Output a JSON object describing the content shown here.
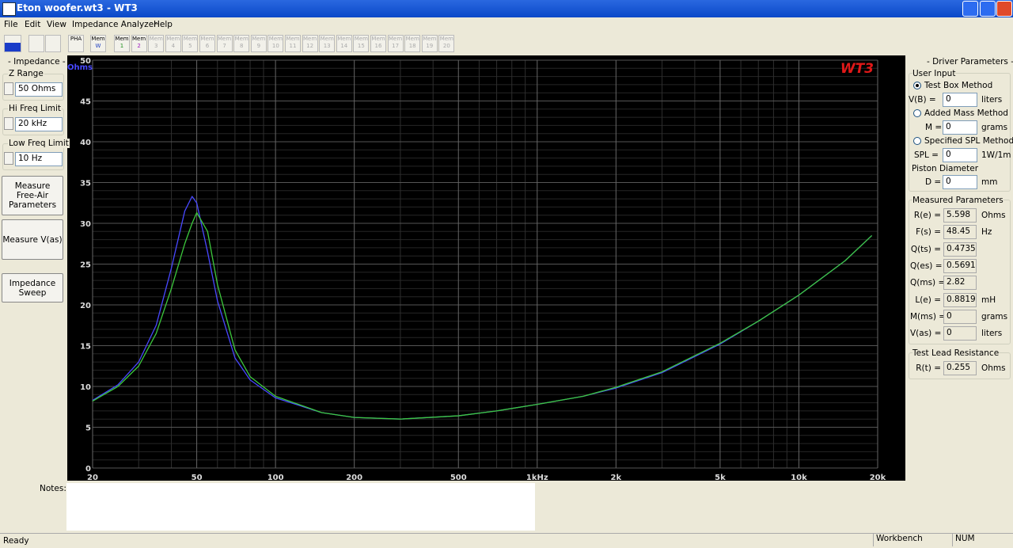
{
  "window": {
    "title": "Eton woofer.wt3 - WT3"
  },
  "menu": [
    "File",
    "Edit",
    "View",
    "Impedance Analyzer",
    "Help"
  ],
  "toolbar": {
    "pha": "PHA",
    "mem": [
      {
        "top": "Mem",
        "bottom": "W"
      },
      {
        "top": "Mem",
        "bottom": "1"
      },
      {
        "top": "Mem",
        "bottom": "2"
      },
      {
        "top": "Mem",
        "bottom": "3"
      },
      {
        "top": "Mem",
        "bottom": "4"
      },
      {
        "top": "Mem",
        "bottom": "5"
      },
      {
        "top": "Mem",
        "bottom": "6"
      },
      {
        "top": "Mem",
        "bottom": "7"
      },
      {
        "top": "Mem",
        "bottom": "8"
      },
      {
        "top": "Mem",
        "bottom": "9"
      },
      {
        "top": "Mem",
        "bottom": "10"
      },
      {
        "top": "Mem",
        "bottom": "11"
      },
      {
        "top": "Mem",
        "bottom": "12"
      },
      {
        "top": "Mem",
        "bottom": "13"
      },
      {
        "top": "Mem",
        "bottom": "14"
      },
      {
        "top": "Mem",
        "bottom": "15"
      },
      {
        "top": "Mem",
        "bottom": "16"
      },
      {
        "top": "Mem",
        "bottom": "17"
      },
      {
        "top": "Mem",
        "bottom": "18"
      },
      {
        "top": "Mem",
        "bottom": "19"
      },
      {
        "top": "Mem",
        "bottom": "20"
      }
    ]
  },
  "left_panel": {
    "title": "- Impedance -",
    "fields": [
      {
        "label": "Z Range",
        "value": "50 Ohms"
      },
      {
        "label": "Hi Freq Limit",
        "value": "20 kHz"
      },
      {
        "label": "Low Freq Limit",
        "value": "10 Hz"
      }
    ],
    "buttons": [
      [
        "Measure",
        "Free-Air",
        "Parameters"
      ],
      [
        "Measure V(as)"
      ],
      [
        "Impedance",
        "Sweep"
      ]
    ]
  },
  "chart_data": {
    "type": "line",
    "y_unit": "Ohms",
    "logo": "WT3",
    "xlog": true,
    "grid": true,
    "x": [
      20,
      25,
      30,
      35,
      40,
      45,
      48,
      50,
      55,
      60,
      70,
      80,
      100,
      150,
      200,
      300,
      500,
      700,
      1000,
      1500,
      2000,
      3000,
      5000,
      7000,
      10000,
      15000,
      19000
    ],
    "series": [
      {
        "color": "#4848ff",
        "values": [
          8.3,
          10.2,
          13.0,
          17.5,
          24.5,
          31.5,
          33.3,
          32.5,
          26.5,
          20.5,
          13.5,
          10.8,
          8.6,
          6.8,
          6.2,
          6.0,
          6.4,
          7.0,
          7.8,
          8.8,
          9.8,
          11.7,
          15.2,
          18.0,
          21.2,
          25.4,
          28.5
        ]
      },
      {
        "color": "#3cc83c",
        "values": [
          8.2,
          10.0,
          12.5,
          16.5,
          22.0,
          27.5,
          30.0,
          31.3,
          29.0,
          22.5,
          14.5,
          11.2,
          8.8,
          6.8,
          6.2,
          6.0,
          6.4,
          7.0,
          7.8,
          8.8,
          9.9,
          11.8,
          15.3,
          18.0,
          21.2,
          25.4,
          28.5
        ]
      }
    ],
    "xlim": [
      20,
      20000
    ],
    "xticks": [
      20,
      50,
      100,
      200,
      500,
      {
        "value": 1000,
        "label": "1kHz"
      },
      {
        "value": 2000,
        "label": "2k"
      },
      {
        "value": 5000,
        "label": "5k"
      },
      {
        "value": 10000,
        "label": "10k"
      },
      {
        "value": 20000,
        "label": "20k"
      }
    ],
    "x_minor_ticks": [
      30,
      40,
      60,
      70,
      80,
      90,
      300,
      400,
      600,
      700,
      800,
      900,
      3000,
      4000,
      6000,
      7000,
      8000,
      9000
    ],
    "ylim": [
      0,
      50
    ],
    "yticks": [
      0,
      5,
      10,
      15,
      20,
      25,
      30,
      35,
      40,
      45,
      50
    ],
    "y_minor_step": 1
  },
  "right_panel": {
    "title": "- Driver Parameters -",
    "user_input": {
      "title": "User Input",
      "methods": [
        {
          "label": "Test Box Method",
          "field": "V(B) =",
          "value": "0",
          "unit": "liters"
        },
        {
          "label": "Added Mass Method",
          "field": "M =",
          "value": "0",
          "unit": "grams"
        },
        {
          "label": "Specified SPL Method",
          "field": "SPL =",
          "value": "0",
          "unit": "1W/1m"
        }
      ],
      "piston": {
        "label": "Piston Diameter",
        "field": "D =",
        "value": "0",
        "unit": "mm"
      }
    },
    "measured": {
      "title": "Measured Parameters",
      "rows": [
        {
          "field": "R(e) =",
          "value": "5.598",
          "unit": "Ohms"
        },
        {
          "field": "F(s) =",
          "value": "48.45",
          "unit": "Hz"
        },
        {
          "field": "Q(ts) =",
          "value": "0.4735"
        },
        {
          "field": "Q(es) =",
          "value": "0.5691"
        },
        {
          "field": "Q(ms) =",
          "value": "2.82"
        },
        {
          "field": "L(e) =",
          "value": "0.8819",
          "unit": "mH"
        },
        {
          "field": "M(ms) =",
          "value": "0",
          "unit": "grams"
        },
        {
          "field": "V(as) =",
          "value": "0",
          "unit": "liters"
        }
      ]
    },
    "lead": {
      "title": "Test Lead Resistance",
      "field": "R(t) =",
      "value": "0.255",
      "unit": "Ohms"
    }
  },
  "notes": {
    "label": "Notes:"
  },
  "status": {
    "text": "Ready",
    "workbench": "Workbench",
    "num": "NUM"
  }
}
